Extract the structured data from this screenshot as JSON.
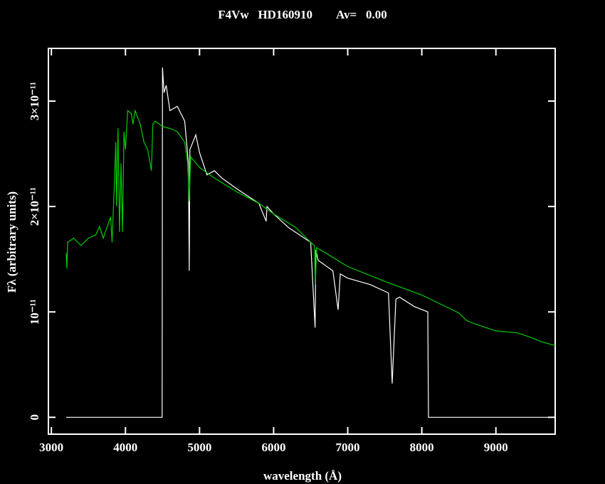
{
  "chart_data": {
    "type": "line",
    "title": "F4Vw   HD160910        Av=   0.00",
    "x_label": "wavelength (Å)",
    "y_label": "Fλ (arbitrary units)",
    "xlim": [
      2960,
      9800
    ],
    "ylim": [
      -1.6e-12,
      3.5e-11
    ],
    "xticks": [
      3000,
      4000,
      5000,
      6000,
      7000,
      8000,
      9000
    ],
    "yticks": [
      0,
      {
        "value": 1e-11,
        "label": "10⁻¹¹"
      },
      {
        "value": 2e-11,
        "label": "2×10⁻¹¹"
      },
      {
        "value": 3e-11,
        "label": "3×10⁻¹¹"
      }
    ],
    "series": [
      {
        "color": "#ffffff",
        "x": [
          3200,
          4495,
          4500,
          4520,
          4550,
          4600,
          4700,
          4800,
          4850,
          4861,
          4870,
          4950,
          5000,
          5100,
          5200,
          5300,
          5500,
          5800,
          5900,
          5910,
          6000,
          6200,
          6500,
          6560,
          6570,
          6600,
          6800,
          6870,
          6900,
          7000,
          7300,
          7550,
          7600,
          7650,
          7700,
          7900,
          8080,
          8090,
          9800
        ],
        "values": [
          0,
          0,
          3.32e-11,
          3.08e-11,
          3.15e-11,
          2.91e-11,
          2.95e-11,
          2.81e-11,
          2.41e-11,
          1.39e-11,
          2.54e-11,
          2.68e-11,
          2.51e-11,
          2.3e-11,
          2.34e-11,
          2.27e-11,
          2.17e-11,
          2.03e-11,
          1.86e-11,
          2e-11,
          1.93e-11,
          1.8e-11,
          1.66e-11,
          8.5e-12,
          1.59e-11,
          1.49e-11,
          1.39e-11,
          1.02e-11,
          1.36e-11,
          1.32e-11,
          1.26e-11,
          1.18e-11,
          3.2e-12,
          1.12e-11,
          1.14e-11,
          1.05e-11,
          1e-11,
          0,
          0
        ]
      },
      {
        "color": "#00cc00",
        "x": [
          3200,
          3210,
          3220,
          3300,
          3400,
          3500,
          3600,
          3650,
          3700,
          3750,
          3800,
          3820,
          3850,
          3870,
          3880,
          3900,
          3920,
          3940,
          3960,
          3980,
          4000,
          4030,
          4080,
          4100,
          4130,
          4200,
          4250,
          4300,
          4350,
          4370,
          4400,
          4500,
          4600,
          4700,
          4800,
          4840,
          4860,
          4880,
          5000,
          5200,
          5500,
          5800,
          6000,
          6300,
          6500,
          6550,
          6563,
          6580,
          6700,
          7000,
          7500,
          8000,
          8500,
          8600,
          8700,
          9000,
          9300,
          9500,
          9600,
          9800
        ],
        "values": [
          1.56e-11,
          1.41e-11,
          1.66e-11,
          1.7e-11,
          1.63e-11,
          1.7e-11,
          1.73e-11,
          1.81e-11,
          1.7e-11,
          1.8e-11,
          1.9e-11,
          1.66e-11,
          2.2e-11,
          2.61e-11,
          2e-11,
          2.74e-11,
          1.76e-11,
          2.41e-11,
          1.76e-11,
          2.71e-11,
          2.54e-11,
          2.91e-11,
          2.88e-11,
          2.78e-11,
          2.91e-11,
          2.78e-11,
          2.61e-11,
          2.54e-11,
          2.34e-11,
          2.78e-11,
          2.81e-11,
          2.76e-11,
          2.74e-11,
          2.71e-11,
          2.61e-11,
          2.41e-11,
          2.05e-11,
          2.47e-11,
          2.37e-11,
          2.27e-11,
          2.14e-11,
          2.03e-11,
          1.93e-11,
          1.8e-11,
          1.66e-11,
          1.63e-11,
          1.26e-11,
          1.61e-11,
          1.56e-11,
          1.43e-11,
          1.29e-11,
          1.16e-11,
          9.9e-12,
          9.2e-12,
          8.9e-12,
          8.2e-12,
          8e-12,
          7.5e-12,
          7.2e-12,
          6.8e-12
        ]
      }
    ]
  }
}
